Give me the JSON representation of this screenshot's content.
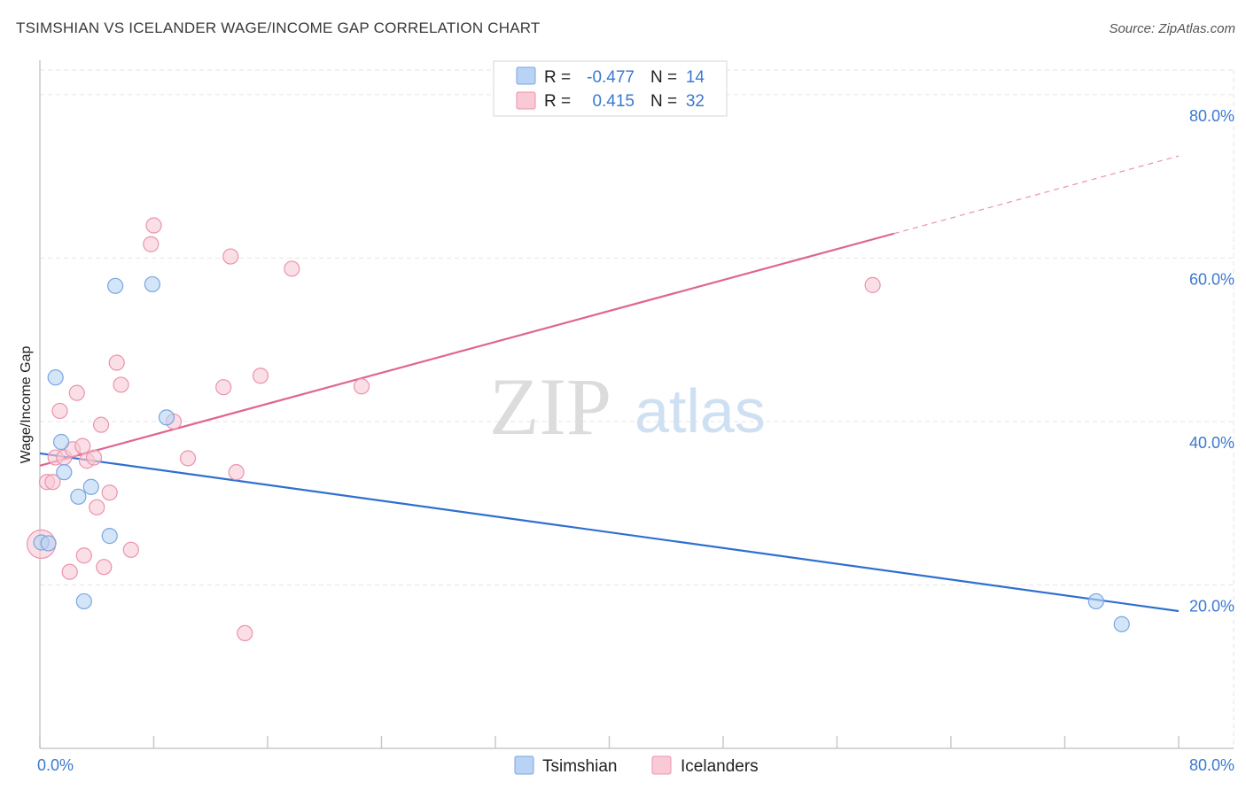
{
  "header": {
    "title": "TSIMSHIAN VS ICELANDER WAGE/INCOME GAP CORRELATION CHART",
    "source": "Source: ZipAtlas.com"
  },
  "watermark": {
    "zip": "ZIP",
    "atlas": "atlas"
  },
  "colors": {
    "tsimshian_fill": "#b8d3f3",
    "tsimshian_stroke": "#7aa6e0",
    "tsimshian_line": "#2f6fd0",
    "icelander_fill": "#f9c9d6",
    "icelander_stroke": "#eb93ad",
    "icelander_line": "#e0658f",
    "accent_text": "#3b78d0",
    "grid": "#e6e6e6"
  },
  "stats": {
    "tsimshian": {
      "r_label": "R =",
      "r_value": "-0.477",
      "n_label": "N =",
      "n_value": "14"
    },
    "icelanders": {
      "r_label": "R =",
      "r_value": "0.415",
      "n_label": "N =",
      "n_value": "32"
    }
  },
  "chart_data": {
    "type": "scatter",
    "title": "TSIMSHIAN VS ICELANDER WAGE/INCOME GAP CORRELATION CHART",
    "xlabel": "",
    "ylabel": "Wage/Income Gap",
    "xlim": [
      0,
      80
    ],
    "ylim": [
      0,
      84
    ],
    "x_tick_labels": [
      {
        "value": 0,
        "label": "0.0%"
      },
      {
        "value": 80,
        "label": "80.0%"
      }
    ],
    "y_tick_labels": [
      {
        "value": 20,
        "label": "20.0%"
      },
      {
        "value": 40,
        "label": "40.0%"
      },
      {
        "value": 60,
        "label": "60.0%"
      },
      {
        "value": 80,
        "label": "80.0%"
      }
    ],
    "legend": [
      "Tsimshian",
      "Icelanders"
    ],
    "series": [
      {
        "name": "Tsimshian",
        "points": [
          [
            0.1,
            25.2
          ],
          [
            0.6,
            25.1
          ],
          [
            1.1,
            45.4
          ],
          [
            1.5,
            37.5
          ],
          [
            1.7,
            33.8
          ],
          [
            2.7,
            30.8
          ],
          [
            3.1,
            18.0
          ],
          [
            3.6,
            32.0
          ],
          [
            4.9,
            26.0
          ],
          [
            5.3,
            56.6
          ],
          [
            7.9,
            56.8
          ],
          [
            8.9,
            40.5
          ],
          [
            74.2,
            18.0
          ],
          [
            76.0,
            15.2
          ]
        ],
        "trend": {
          "x_start": 0,
          "y_start": 36.1,
          "x_end": 80,
          "y_end": 16.8
        }
      },
      {
        "name": "Icelanders",
        "points": [
          [
            0.1,
            25.0
          ],
          [
            0.5,
            32.6
          ],
          [
            0.9,
            32.6
          ],
          [
            1.1,
            35.6
          ],
          [
            1.4,
            41.3
          ],
          [
            1.7,
            35.6
          ],
          [
            2.1,
            21.6
          ],
          [
            2.3,
            36.6
          ],
          [
            2.6,
            43.5
          ],
          [
            3.0,
            37.0
          ],
          [
            3.1,
            23.6
          ],
          [
            3.3,
            35.2
          ],
          [
            3.8,
            35.6
          ],
          [
            4.0,
            29.5
          ],
          [
            4.3,
            39.6
          ],
          [
            4.5,
            22.2
          ],
          [
            4.9,
            31.3
          ],
          [
            5.4,
            47.2
          ],
          [
            5.7,
            44.5
          ],
          [
            6.4,
            24.3
          ],
          [
            7.8,
            61.7
          ],
          [
            8.0,
            64.0
          ],
          [
            9.4,
            40.0
          ],
          [
            10.4,
            35.5
          ],
          [
            12.9,
            44.2
          ],
          [
            13.4,
            60.2
          ],
          [
            13.8,
            33.8
          ],
          [
            14.4,
            14.1
          ],
          [
            15.5,
            45.6
          ],
          [
            17.7,
            58.7
          ],
          [
            22.6,
            44.3
          ],
          [
            58.5,
            56.7
          ]
        ],
        "trend": {
          "x_start": 0,
          "y_start": 34.6,
          "x_end": 60,
          "y_end": 63.0
        },
        "trend_extension": {
          "x_start": 60,
          "y_start": 63.0,
          "x_end": 80,
          "y_end": 72.5
        }
      }
    ]
  }
}
